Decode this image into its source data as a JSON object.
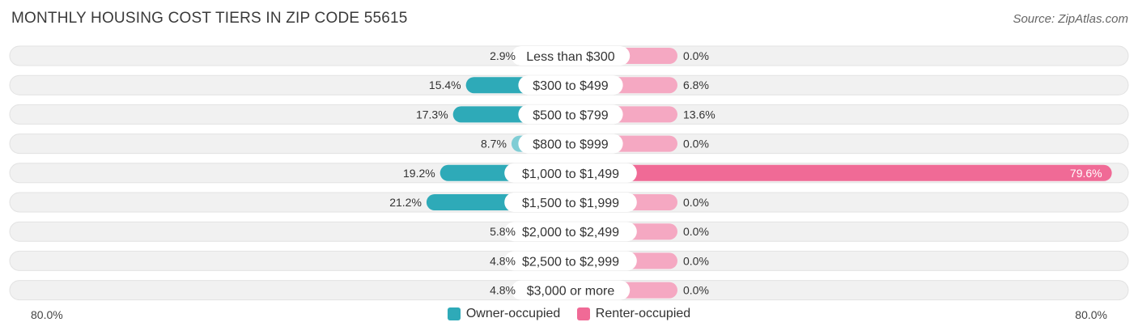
{
  "title": "MONTHLY HOUSING COST TIERS IN ZIP CODE 55615",
  "source": "Source: ZipAtlas.com",
  "colors": {
    "owner_strong": "#2eaab8",
    "owner_light": "#7fcdd5",
    "renter_strong": "#f06a96",
    "renter_light": "#f5a8c2",
    "track": "#f1f1f1"
  },
  "chart_data": {
    "type": "bar",
    "orientation": "horizontal-diverging",
    "categories": [
      "Less than $300",
      "$300 to $499",
      "$500 to $799",
      "$800 to $999",
      "$1,000 to $1,499",
      "$1,500 to $1,999",
      "$2,000 to $2,499",
      "$2,500 to $2,999",
      "$3,000 or more"
    ],
    "series": [
      {
        "name": "Owner-occupied",
        "values": [
          2.9,
          15.4,
          17.3,
          8.7,
          19.2,
          21.2,
          5.8,
          4.8,
          4.8
        ],
        "labels": [
          "2.9%",
          "15.4%",
          "17.3%",
          "8.7%",
          "19.2%",
          "21.2%",
          "5.8%",
          "4.8%",
          "4.8%"
        ]
      },
      {
        "name": "Renter-occupied",
        "values": [
          0.0,
          6.8,
          13.6,
          0.0,
          79.6,
          0.0,
          0.0,
          0.0,
          0.0
        ],
        "labels": [
          "0.0%",
          "6.8%",
          "13.6%",
          "0.0%",
          "79.6%",
          "0.0%",
          "0.0%",
          "0.0%",
          "0.0%"
        ]
      }
    ],
    "xlim": [
      -80,
      80
    ],
    "axis_labels": {
      "left": "80.0%",
      "right": "80.0%"
    },
    "legend_position": "bottom-center"
  }
}
